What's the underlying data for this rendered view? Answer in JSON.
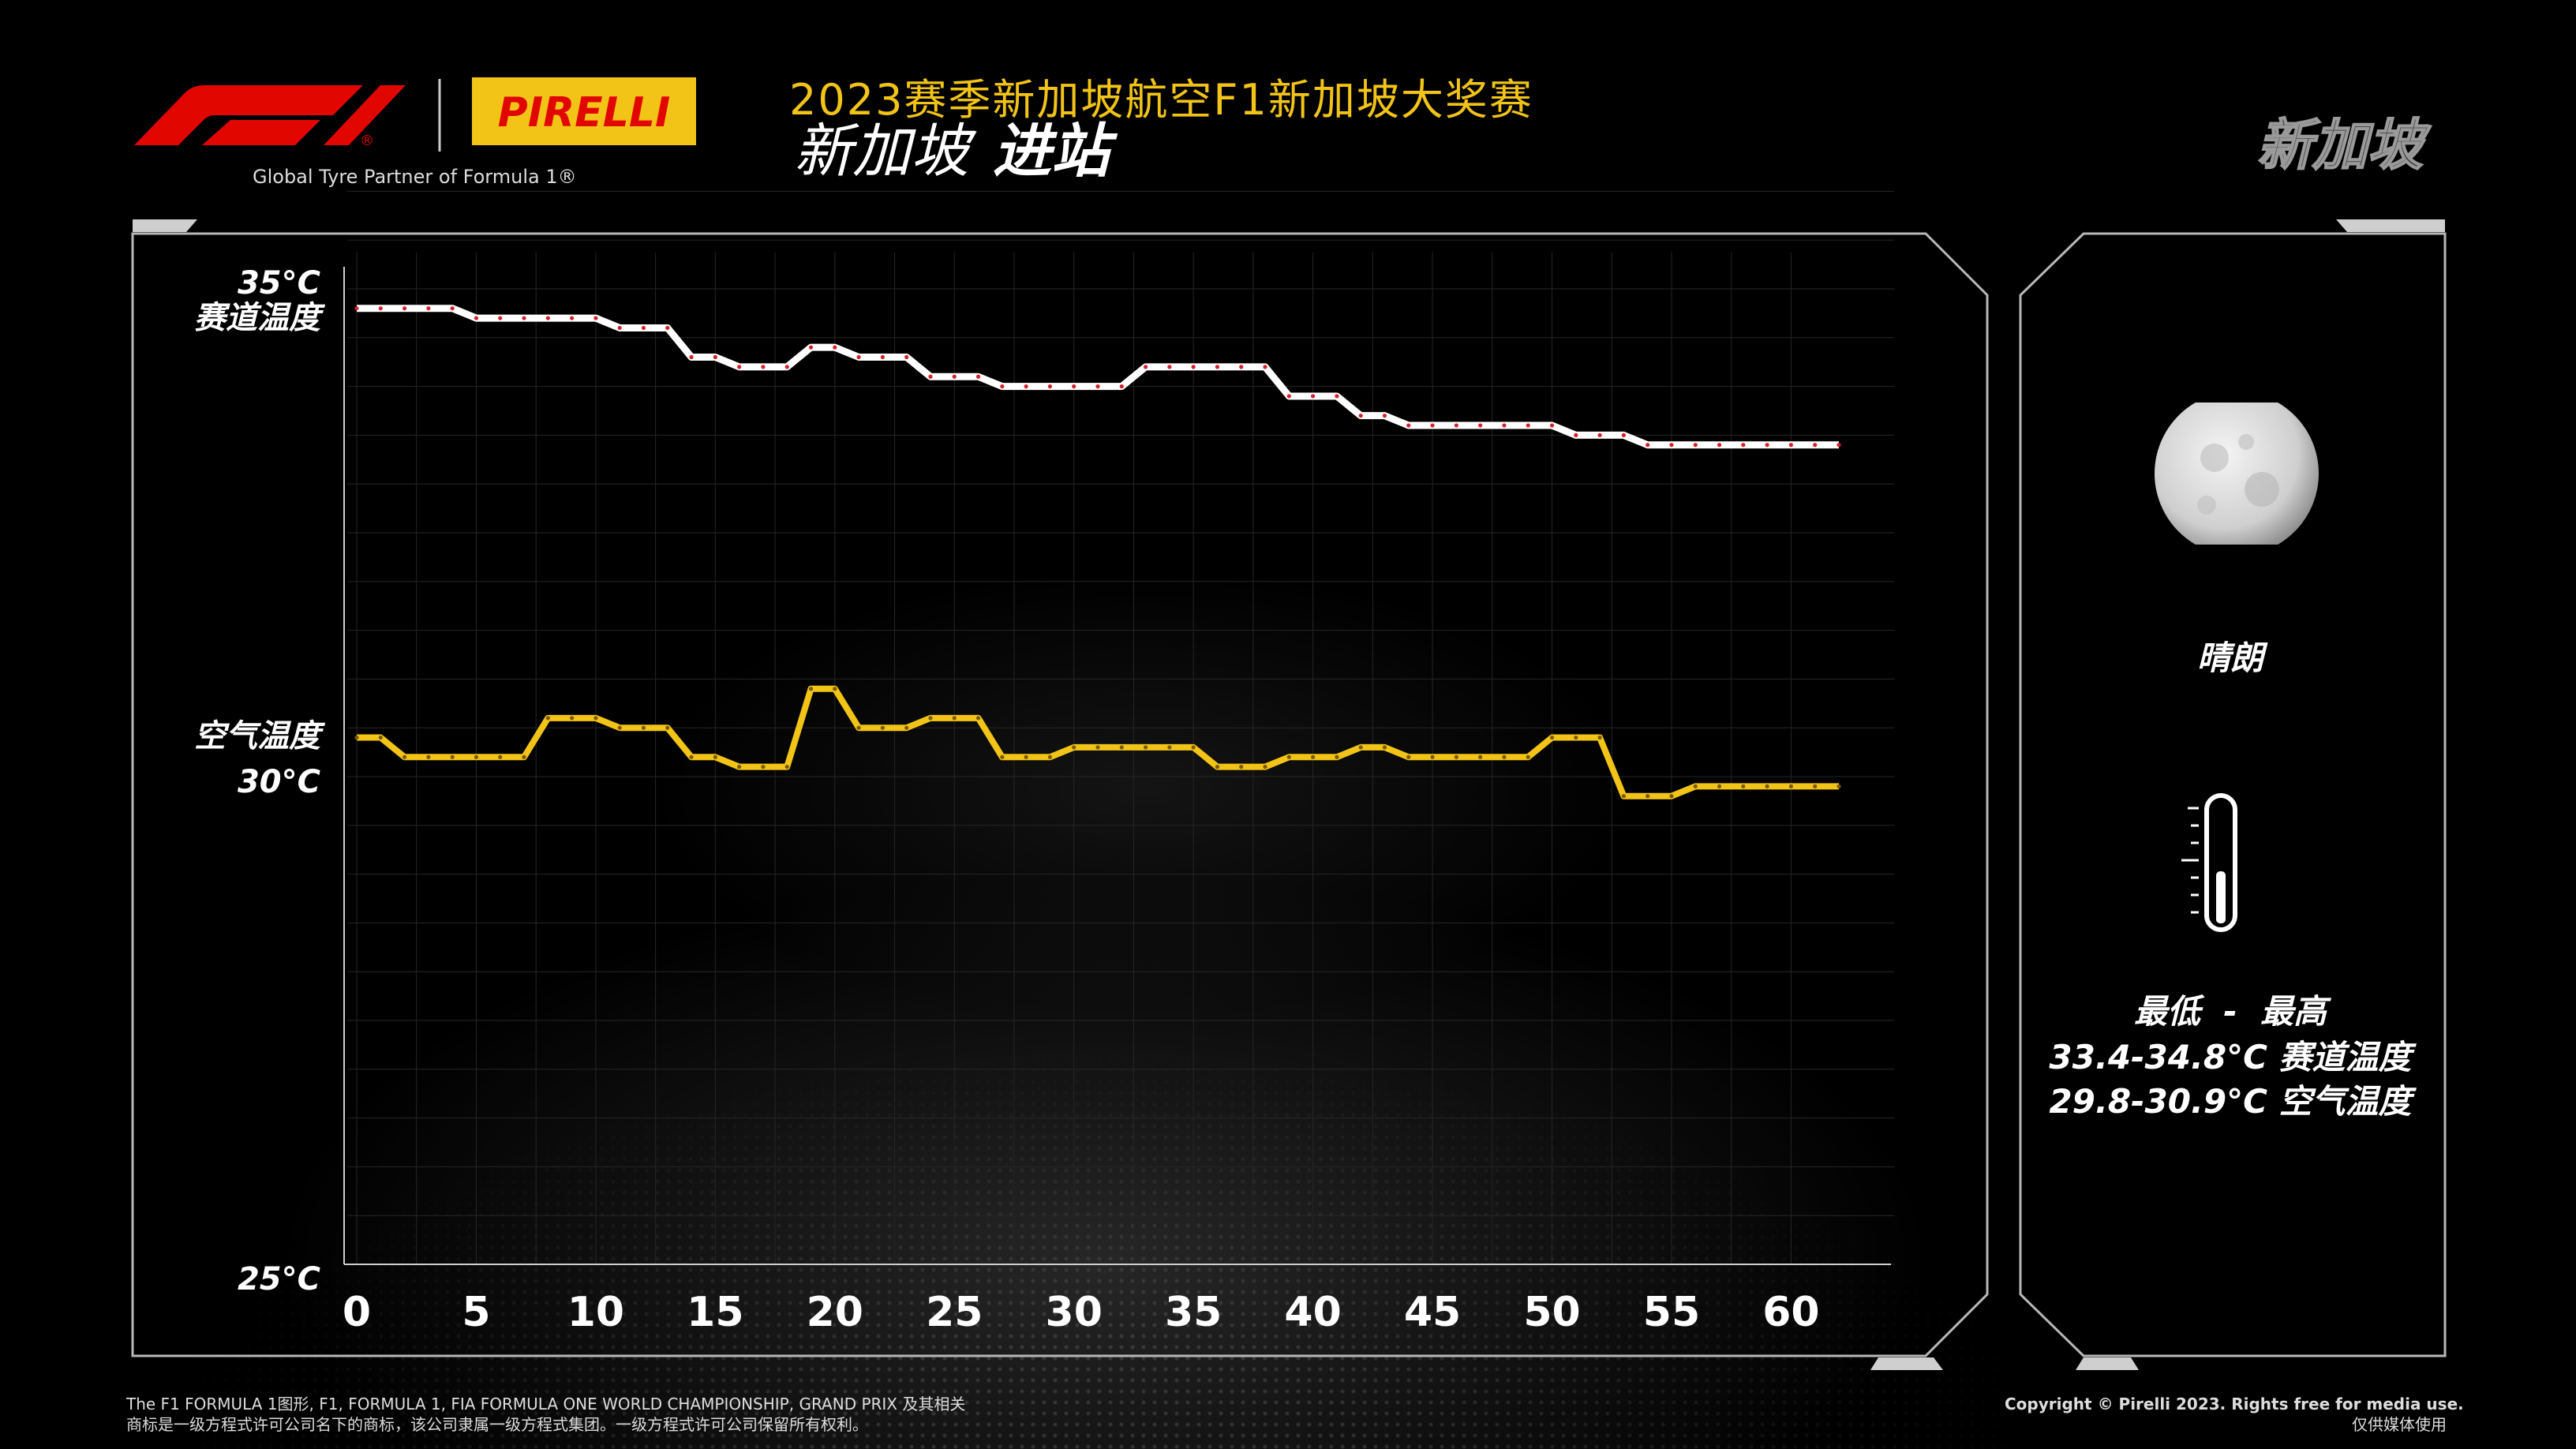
{
  "header": {
    "title": "2023赛季新加坡航空F1新加坡大奖赛",
    "subtitle_location": "新加坡",
    "subtitle_session": "进站",
    "corner_label": "新加坡",
    "tagline": "Global Tyre Partner of Formula 1®",
    "brand_f1": "F1®",
    "brand_pirelli": "PIRELLI"
  },
  "colors": {
    "accent_yellow": "#f2c417",
    "brand_red": "#e10600",
    "track_line": "#ffffff",
    "track_dots": "#d4202a",
    "air_line": "#f2c417",
    "panel_border": "#b8b8b8"
  },
  "side_panel": {
    "weather_icon": "moon-icon",
    "weather": "晴朗",
    "thermometer_icon": "thermometer-icon",
    "range_header": "最低  -  最高",
    "track_range": "33.4-34.8°C 赛道温度",
    "air_range": "29.8-30.9°C 空气温度"
  },
  "footer": {
    "left_line1": "The F1 FORMULA 1图形, F1, FORMULA 1, FIA FORMULA ONE WORLD CHAMPIONSHIP, GRAND PRIX 及其相关",
    "left_line2": "商标是一级方程式许可公司名下的商标，该公司隶属一级方程式集团。一级方程式许可公司保留所有权利。",
    "right_line1": "Copyright © Pirelli 2023. Rights free for media use.",
    "right_line2": "仅供媒体使用"
  },
  "chart_data": {
    "type": "line",
    "title": "",
    "xlabel": "",
    "ylabel": "",
    "xlim": [
      0,
      62
    ],
    "ylim": [
      25,
      35
    ],
    "x_ticks": [
      0,
      5,
      10,
      15,
      20,
      25,
      30,
      35,
      40,
      45,
      50,
      55,
      60
    ],
    "y_tick_labels": {
      "y35": "35°C",
      "y35_name": "赛道温度",
      "y30_name": "空气温度",
      "y30": "30°C",
      "y25": "25°C"
    },
    "grid": true,
    "series": [
      {
        "key": "track",
        "color": "#ffffff",
        "x": [
          0,
          4,
          5,
          10,
          11,
          13,
          14,
          15,
          16,
          18,
          19,
          20,
          21,
          23,
          24,
          26,
          27,
          32,
          33,
          38,
          39,
          41,
          42,
          43,
          44,
          50,
          51,
          53,
          54,
          62
        ],
        "y": [
          34.8,
          34.8,
          34.7,
          34.7,
          34.6,
          34.6,
          34.3,
          34.3,
          34.2,
          34.2,
          34.4,
          34.4,
          34.3,
          34.3,
          34.1,
          34.1,
          34.0,
          34.0,
          34.2,
          34.2,
          33.9,
          33.9,
          33.7,
          33.7,
          33.6,
          33.6,
          33.5,
          33.5,
          33.4,
          33.4
        ]
      },
      {
        "key": "air",
        "color": "#f2c417",
        "x": [
          0,
          1,
          2,
          7,
          8,
          10,
          11,
          13,
          14,
          15,
          16,
          18,
          19,
          20,
          21,
          23,
          24,
          26,
          27,
          29,
          30,
          35,
          36,
          38,
          39,
          41,
          42,
          43,
          44,
          49,
          50,
          52,
          53,
          55,
          56,
          62
        ],
        "y": [
          30.4,
          30.4,
          30.2,
          30.2,
          30.6,
          30.6,
          30.5,
          30.5,
          30.2,
          30.2,
          30.1,
          30.1,
          30.9,
          30.9,
          30.5,
          30.5,
          30.6,
          30.6,
          30.2,
          30.2,
          30.3,
          30.3,
          30.1,
          30.1,
          30.2,
          30.2,
          30.3,
          30.3,
          30.2,
          30.2,
          30.4,
          30.4,
          29.8,
          29.8,
          29.9,
          29.9
        ]
      }
    ]
  }
}
